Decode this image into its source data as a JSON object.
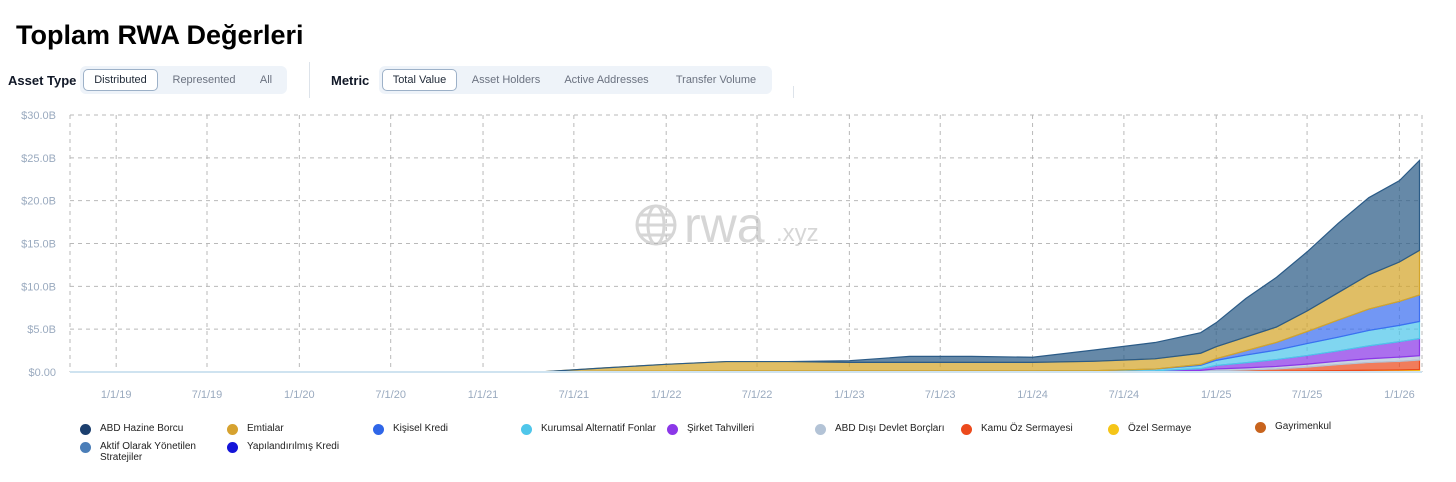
{
  "title": "Toplam RWA Değerleri",
  "asset_type": {
    "label": "Asset Type",
    "options": [
      "Distributed",
      "Represented",
      "All"
    ],
    "selected": "Distributed"
  },
  "metric": {
    "label": "Metric",
    "options": [
      "Total Value",
      "Asset Holders",
      "Active Addresses",
      "Transfer Volume"
    ],
    "selected": "Total Value"
  },
  "watermark": {
    "brand": "rwa",
    "suffix": ".xyz"
  },
  "colors": {
    "grid": "#b9b9b9",
    "tick_text": "#9aaabf",
    "axis": "#cfe3f0"
  },
  "chart_data": {
    "type": "area",
    "stacked": true,
    "title": "",
    "xlabel": "",
    "ylabel": "",
    "ylim": [
      0,
      30
    ],
    "yticks": [
      {
        "value": 0,
        "label": "$0.00"
      },
      {
        "value": 5,
        "label": "$5.0B"
      },
      {
        "value": 10,
        "label": "$10.0B"
      },
      {
        "value": 15,
        "label": "$15.0B"
      },
      {
        "value": 20,
        "label": "$20.0B"
      },
      {
        "value": 25,
        "label": "$25.0B"
      },
      {
        "value": 30,
        "label": "$30.0B"
      }
    ],
    "xlim": [
      "2018-10-01",
      "2026-02-15"
    ],
    "xticks": [
      {
        "date": "2019-01-01",
        "label": "1/1/19"
      },
      {
        "date": "2019-07-01",
        "label": "7/1/19"
      },
      {
        "date": "2020-01-01",
        "label": "1/1/20"
      },
      {
        "date": "2020-07-01",
        "label": "7/1/20"
      },
      {
        "date": "2021-01-01",
        "label": "1/1/21"
      },
      {
        "date": "2021-07-01",
        "label": "7/1/21"
      },
      {
        "date": "2022-01-01",
        "label": "1/1/22"
      },
      {
        "date": "2022-07-01",
        "label": "7/1/22"
      },
      {
        "date": "2023-01-01",
        "label": "1/1/23"
      },
      {
        "date": "2023-07-01",
        "label": "7/1/23"
      },
      {
        "date": "2024-01-01",
        "label": "1/1/24"
      },
      {
        "date": "2024-07-01",
        "label": "7/1/24"
      },
      {
        "date": "2025-01-01",
        "label": "1/1/25"
      },
      {
        "date": "2025-07-01",
        "label": "7/1/25"
      },
      {
        "date": "2026-01-01",
        "label": "1/1/26"
      }
    ],
    "grid": true,
    "legend_position": "bottom",
    "x": [
      "2018-10-01",
      "2019-07-01",
      "2020-07-01",
      "2021-01-01",
      "2021-05-01",
      "2021-09-01",
      "2022-01-01",
      "2022-05-01",
      "2022-09-01",
      "2023-01-01",
      "2023-05-01",
      "2023-09-01",
      "2024-01-01",
      "2024-05-01",
      "2024-09-01",
      "2024-12-01",
      "2025-01-01",
      "2025-03-01",
      "2025-05-01",
      "2025-07-01",
      "2025-09-01",
      "2025-11-01",
      "2026-01-01",
      "2026-02-10"
    ],
    "series": [
      {
        "name": "Gayrimenkul",
        "color": "#c8641e",
        "values": [
          0,
          0,
          0,
          0,
          0,
          0,
          0,
          0,
          0,
          0,
          0,
          0,
          0,
          0,
          0.01,
          0.02,
          0.03,
          0.04,
          0.05,
          0.06,
          0.08,
          0.1,
          0.12,
          0.15
        ]
      },
      {
        "name": "Özel Sermaye",
        "color": "#f5c518",
        "values": [
          0,
          0,
          0,
          0,
          0,
          0,
          0,
          0,
          0,
          0,
          0,
          0,
          0,
          0,
          0.01,
          0.02,
          0.03,
          0.04,
          0.05,
          0.06,
          0.08,
          0.1,
          0.12,
          0.15
        ]
      },
      {
        "name": "Kamu Öz Sermayesi",
        "color": "#ec4a1c",
        "values": [
          0,
          0,
          0,
          0,
          0,
          0,
          0,
          0,
          0,
          0,
          0,
          0,
          0,
          0,
          0.02,
          0.05,
          0.1,
          0.15,
          0.25,
          0.45,
          0.7,
          0.9,
          1.0,
          1.1
        ]
      },
      {
        "name": "ABD Dışı Devlet Borçları",
        "color": "#b3c3d6",
        "values": [
          0,
          0,
          0,
          0,
          0,
          0,
          0,
          0,
          0,
          0,
          0,
          0,
          0,
          0,
          0.05,
          0.1,
          0.2,
          0.25,
          0.3,
          0.35,
          0.4,
          0.45,
          0.5,
          0.5
        ]
      },
      {
        "name": "Şirket Tahvilleri",
        "color": "#8b37e8",
        "values": [
          0,
          0,
          0,
          0,
          0,
          0,
          0,
          0,
          0,
          0,
          0,
          0,
          0,
          0,
          0.05,
          0.2,
          0.4,
          0.6,
          0.8,
          1.0,
          1.2,
          1.5,
          1.8,
          2.0
        ]
      },
      {
        "name": "Kurumsal Alternatif Fonlar",
        "color": "#4fc6ea",
        "values": [
          0,
          0,
          0,
          0,
          0.03,
          0.08,
          0.1,
          0.12,
          0.12,
          0.12,
          0.12,
          0.12,
          0.12,
          0.15,
          0.2,
          0.4,
          0.6,
          0.9,
          1.1,
          1.4,
          1.6,
          1.8,
          1.9,
          2.0
        ]
      },
      {
        "name": "Kişisel Kredi",
        "color": "#3b6ff0",
        "values": [
          0,
          0,
          0,
          0,
          0,
          0,
          0,
          0,
          0,
          0,
          0,
          0,
          0,
          0,
          0,
          0.1,
          0.2,
          0.5,
          0.9,
          1.4,
          2.0,
          2.5,
          2.8,
          3.1
        ]
      },
      {
        "name": "Emtialar",
        "color": "#d4a52a",
        "values": [
          0,
          0,
          0,
          0,
          0,
          0.4,
          0.8,
          1.1,
          1.1,
          1.0,
          1.0,
          1.0,
          1.0,
          1.1,
          1.2,
          1.3,
          1.4,
          1.6,
          1.8,
          2.4,
          3.2,
          4.0,
          4.6,
          5.2
        ]
      },
      {
        "name": "ABD Hazine Borcu",
        "color": "#2b5b87",
        "values": [
          0,
          0,
          0,
          0,
          0,
          0,
          0,
          0,
          0,
          0.2,
          0.7,
          0.7,
          0.6,
          1.3,
          1.9,
          2.4,
          2.8,
          4.5,
          5.8,
          6.9,
          8.1,
          9.0,
          9.5,
          10.5
        ]
      }
    ]
  },
  "legend": [
    {
      "name": "ABD Hazine Borcu",
      "color": "#1c3f6e"
    },
    {
      "name": "Aktif Olarak Yönetilen Stratejiler",
      "color": "#4b7eb8"
    },
    {
      "name": "Emtialar",
      "color": "#d6a22f"
    },
    {
      "name": "Yapılandırılmış Kredi",
      "color": "#1414d8"
    },
    {
      "name": "Kişisel Kredi",
      "color": "#2f66e8"
    },
    {
      "name": "Kurumsal Alternatif Fonlar",
      "color": "#4fc6ea"
    },
    {
      "name": "Şirket Tahvilleri",
      "color": "#8b37e8"
    },
    {
      "name": "ABD Dışı Devlet Borçları",
      "color": "#b3c3d6"
    },
    {
      "name": "Kamu Öz Sermayesi",
      "color": "#ec4a1c"
    },
    {
      "name": "Özel Sermaye",
      "color": "#f5c518"
    },
    {
      "name": "Gayrimenkul",
      "color": "#c8641e"
    }
  ]
}
